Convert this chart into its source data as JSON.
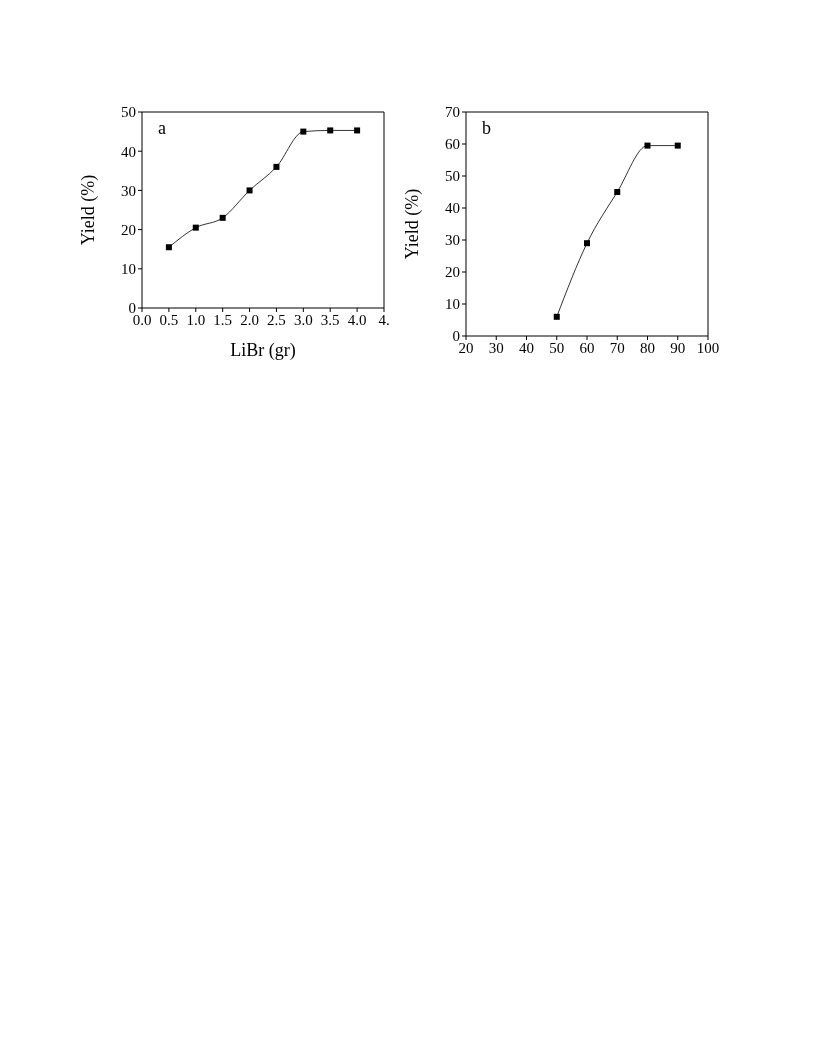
{
  "chart_data": [
    {
      "type": "line",
      "xlabel": "LiBr (gr)",
      "ylabel": "Yield (%)",
      "annotations": [
        "a"
      ],
      "x": [
        0.5,
        1.0,
        1.5,
        2.0,
        2.5,
        3.0,
        3.5,
        4.0
      ],
      "series": [
        {
          "color": "#000000",
          "values": [
            15.5,
            20.5,
            23,
            30,
            36,
            45,
            45.3,
            45.3
          ]
        }
      ],
      "xlim": [
        0,
        4.5
      ],
      "xticks": [
        {
          "value": 0,
          "label": "0.0"
        },
        {
          "value": 0.5,
          "label": "0.5"
        },
        {
          "value": 1,
          "label": "1.0"
        },
        {
          "value": 1.5,
          "label": "1.5"
        },
        {
          "value": 2,
          "label": "2.0"
        },
        {
          "value": 2.5,
          "label": "2.5"
        },
        {
          "value": 3,
          "label": "3.0"
        },
        {
          "value": 3.5,
          "label": "3.5"
        },
        {
          "value": 4,
          "label": "4.0"
        },
        {
          "value": 4.5,
          "label": "4."
        }
      ],
      "ylim": [
        0,
        50
      ],
      "yticks": [
        0,
        10,
        20,
        30,
        40,
        50
      ],
      "grid": false,
      "legend": false,
      "marker": "square",
      "line_style": "solid"
    },
    {
      "type": "line",
      "ylabel": "Yield (%)",
      "annotations": [
        "b"
      ],
      "x": [
        50,
        60,
        70,
        80,
        90
      ],
      "series": [
        {
          "color": "#000000",
          "values": [
            6,
            29,
            45,
            59.5,
            59.5
          ]
        }
      ],
      "xlim": [
        20,
        100
      ],
      "xticks": [
        20,
        30,
        40,
        50,
        60,
        70,
        80,
        90,
        100
      ],
      "ylim": [
        0,
        70
      ],
      "yticks": [
        0,
        10,
        20,
        30,
        40,
        50,
        60,
        70
      ],
      "grid": false,
      "legend": false,
      "marker": "square",
      "line_style": "solid"
    }
  ]
}
